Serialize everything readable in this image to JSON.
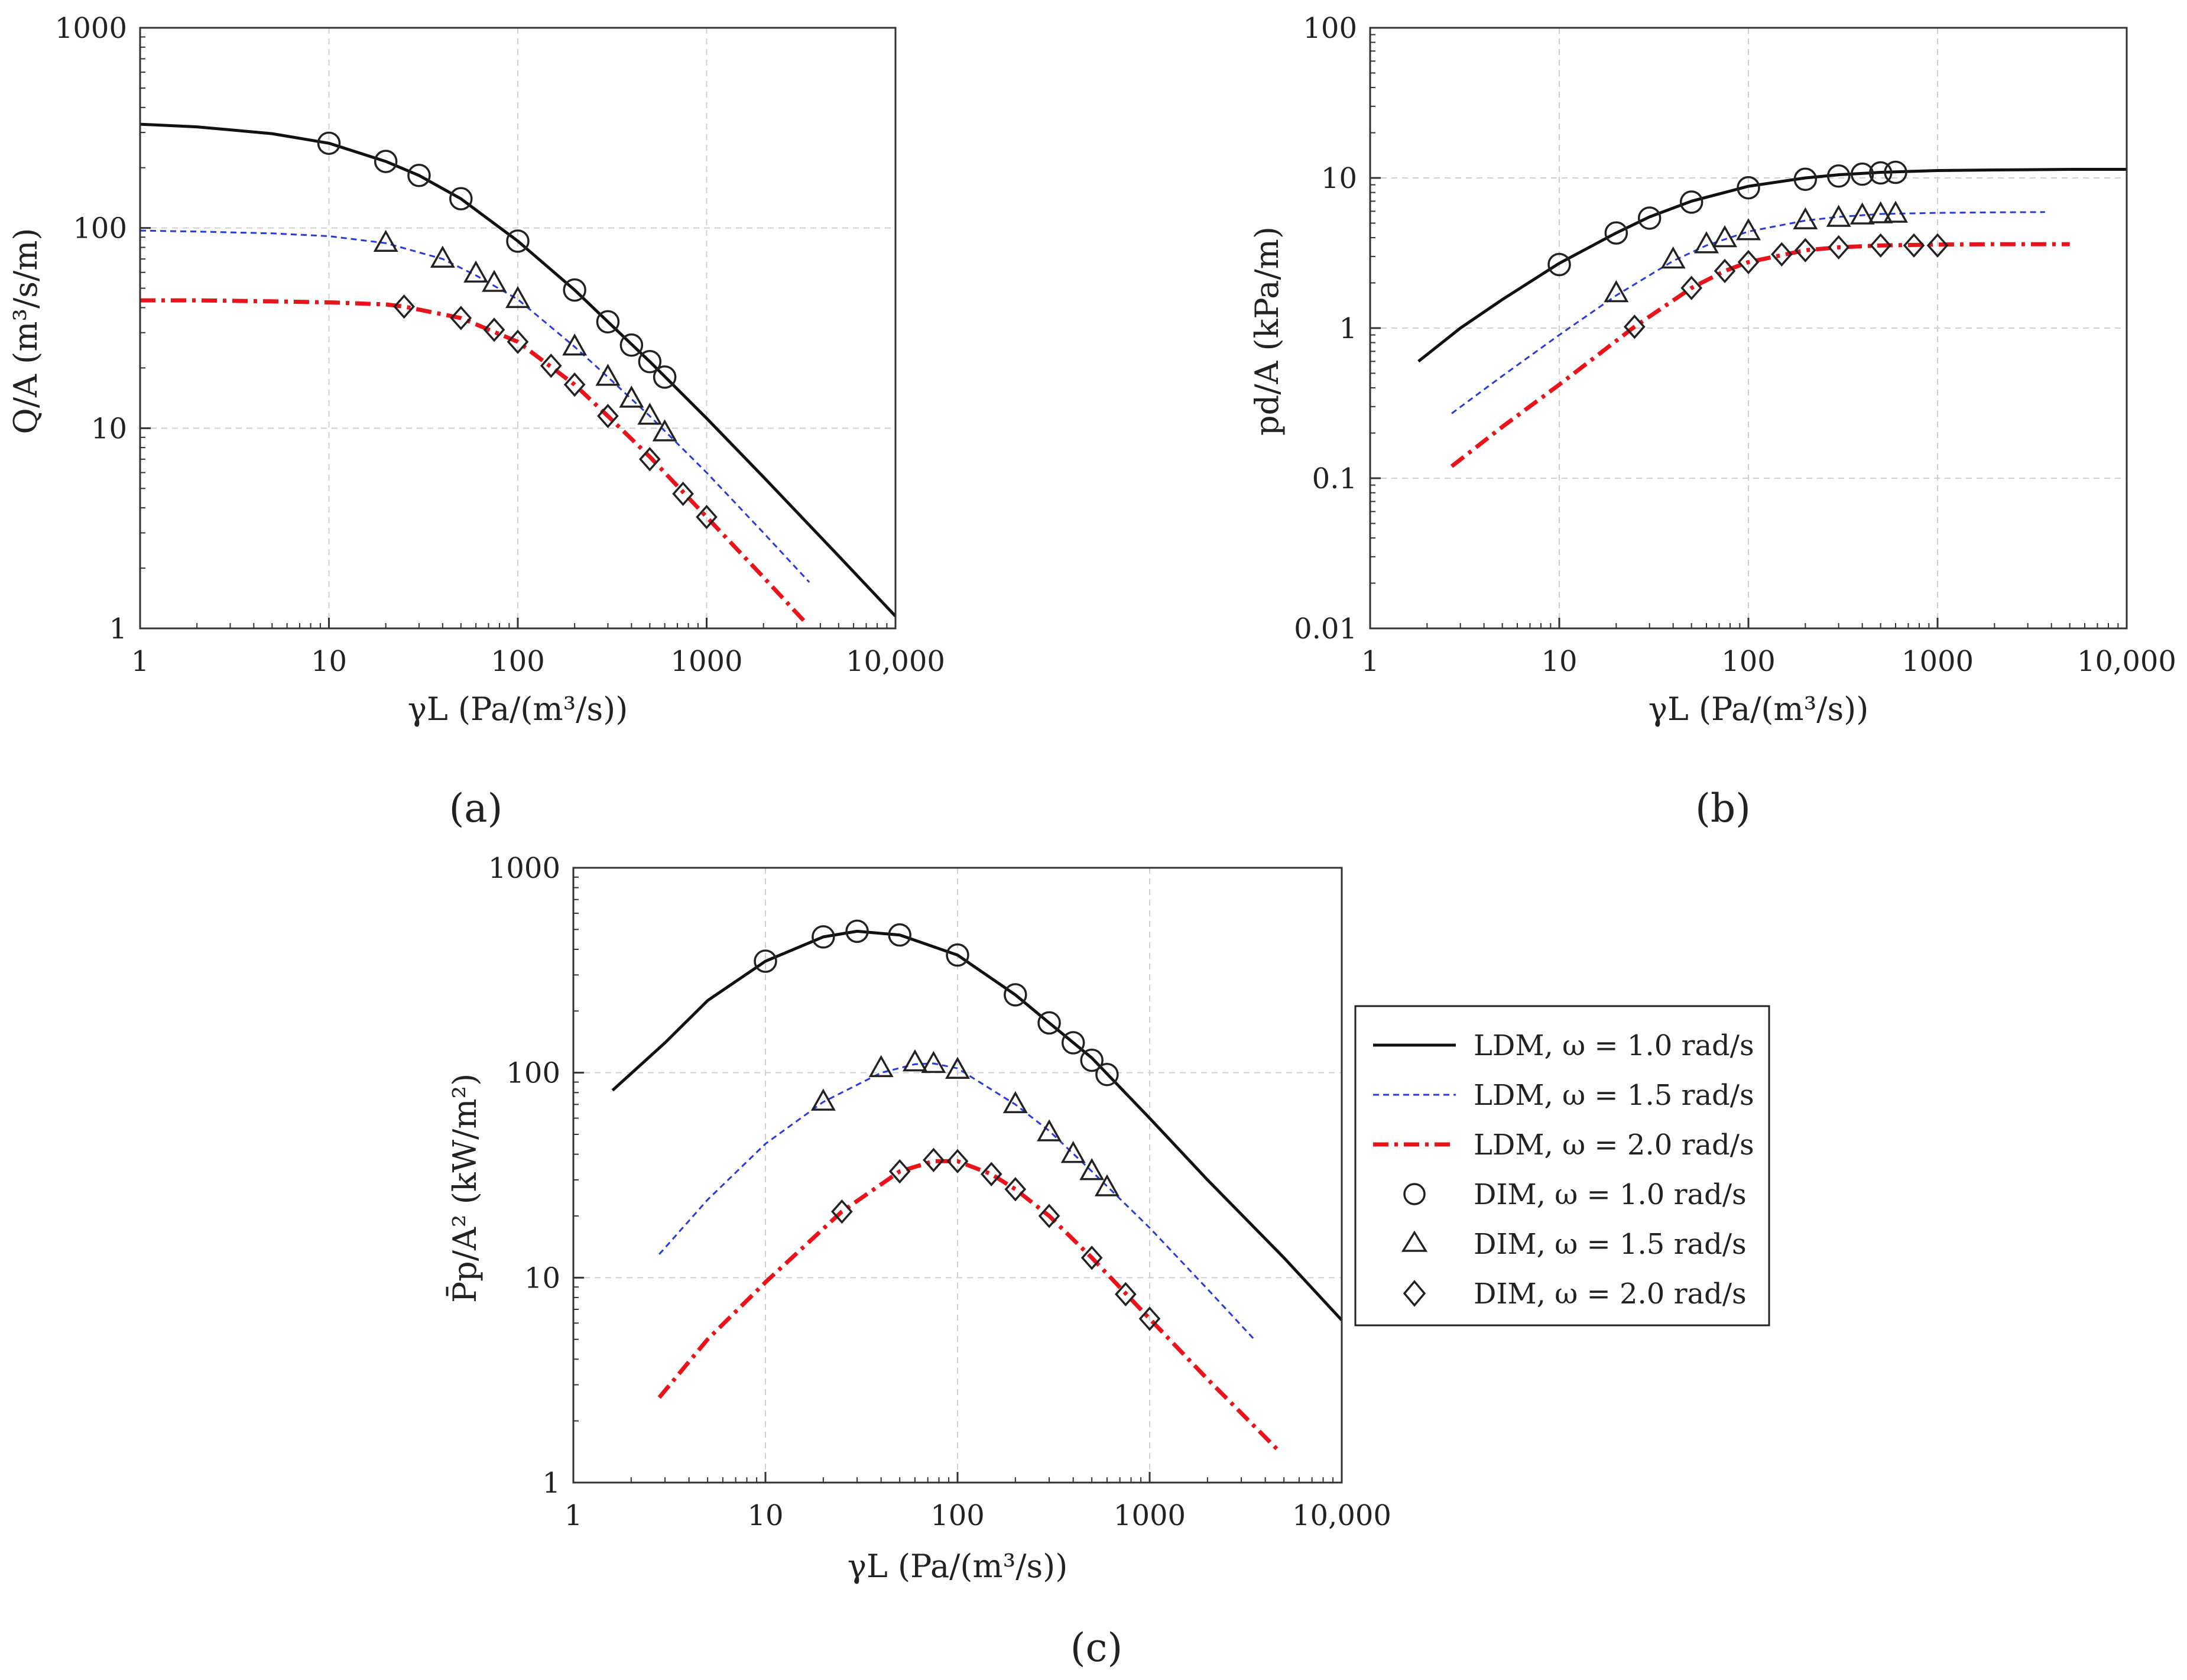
{
  "chart_data": [
    {
      "type": "line",
      "panel": "a",
      "title": "",
      "xlabel": "γL (Pa/(m³/s))",
      "ylabel": "Q/A (m³/s/m)",
      "xscale": "log",
      "yscale": "log",
      "xlim": [
        1,
        10000
      ],
      "ylim": [
        1,
        1000
      ],
      "xticks": [
        1,
        10,
        100,
        1000,
        10000
      ],
      "xtick_labels": [
        "1",
        "10",
        "100",
        "1000",
        "10,000"
      ],
      "yticks": [
        1,
        10,
        100,
        1000
      ],
      "ytick_labels": [
        "1",
        "10",
        "100",
        "1000"
      ],
      "grid": true,
      "series": [
        {
          "name": "LDM, ω = 1.0 rad/s",
          "kind": "line",
          "x": [
            1,
            2,
            5,
            10,
            20,
            30,
            50,
            100,
            200,
            300,
            500,
            1000,
            2000,
            5000,
            10000
          ],
          "y": [
            330,
            320,
            296,
            265,
            215,
            183,
            140,
            86,
            49,
            34,
            21.5,
            11.2,
            5.7,
            2.3,
            1.15
          ]
        },
        {
          "name": "LDM, ω = 1.5 rad/s",
          "kind": "line",
          "x": [
            1,
            2,
            5,
            10,
            20,
            40,
            60,
            100,
            200,
            300,
            500,
            1000,
            2000,
            3500
          ],
          "y": [
            97,
            96,
            94,
            91,
            84,
            70,
            58,
            44,
            25.5,
            18,
            11.5,
            6.0,
            3.0,
            1.7
          ]
        },
        {
          "name": "LDM, ω = 2.0 rad/s",
          "kind": "line",
          "x": [
            1,
            2,
            5,
            10,
            20,
            25,
            50,
            100,
            200,
            300,
            500,
            1000,
            2000,
            3400
          ],
          "y": [
            43.5,
            43.5,
            43,
            42.5,
            41.5,
            40.5,
            35.5,
            27,
            16.5,
            11.5,
            7.2,
            3.6,
            1.8,
            1.05
          ]
        },
        {
          "name": "DIM, ω = 1.0 rad/s",
          "kind": "marker",
          "marker": "circle",
          "x": [
            10,
            20,
            30,
            50,
            100,
            200,
            300,
            400,
            500,
            600
          ],
          "y": [
            265,
            215,
            183,
            140,
            86,
            49,
            34,
            26,
            21.5,
            18
          ]
        },
        {
          "name": "DIM, ω = 1.5 rad/s",
          "kind": "marker",
          "marker": "triangle",
          "x": [
            20,
            40,
            60,
            75,
            100,
            200,
            300,
            400,
            500,
            600
          ],
          "y": [
            84,
            70,
            59,
            53,
            44,
            25.5,
            18,
            14,
            11.5,
            9.5
          ]
        },
        {
          "name": "DIM, ω = 2.0 rad/s",
          "kind": "marker",
          "marker": "diamond",
          "x": [
            25,
            50,
            75,
            100,
            150,
            200,
            300,
            500,
            750,
            1000
          ],
          "y": [
            40.5,
            35.5,
            31,
            27,
            20.5,
            16.5,
            11.5,
            7,
            4.7,
            3.6
          ]
        }
      ]
    },
    {
      "type": "line",
      "panel": "b",
      "title": "",
      "xlabel": "γL (Pa/(m³/s))",
      "ylabel": "pd/A (kPa/m)",
      "xscale": "log",
      "yscale": "log",
      "xlim": [
        1,
        10000
      ],
      "ylim": [
        0.01,
        100
      ],
      "xticks": [
        1,
        10,
        100,
        1000,
        10000
      ],
      "xtick_labels": [
        "1",
        "10",
        "100",
        "1000",
        "10,000"
      ],
      "yticks": [
        0.01,
        0.1,
        1,
        10,
        100
      ],
      "ytick_labels": [
        "0.01",
        "0.1",
        "1",
        "10",
        "100"
      ],
      "grid": true,
      "series": [
        {
          "name": "LDM, ω = 1.0 rad/s",
          "kind": "line",
          "x": [
            1.8,
            3,
            5,
            10,
            20,
            30,
            50,
            100,
            200,
            300,
            500,
            1000,
            2000,
            5000,
            10000
          ],
          "y": [
            0.6,
            1.0,
            1.55,
            2.7,
            4.3,
            5.5,
            7.0,
            8.8,
            10.0,
            10.5,
            10.9,
            11.2,
            11.3,
            11.4,
            11.4
          ]
        },
        {
          "name": "LDM, ω = 1.5 rad/s",
          "kind": "line",
          "x": [
            2.7,
            5,
            10,
            20,
            40,
            60,
            100,
            200,
            300,
            500,
            1000,
            2000,
            3700
          ],
          "y": [
            0.27,
            0.48,
            0.9,
            1.65,
            2.8,
            3.55,
            4.4,
            5.2,
            5.5,
            5.75,
            5.85,
            5.9,
            5.92
          ]
        },
        {
          "name": "LDM, ω = 2.0 rad/s",
          "kind": "line",
          "x": [
            2.7,
            5,
            10,
            25,
            50,
            75,
            100,
            200,
            300,
            500,
            1000,
            2000,
            5000
          ],
          "y": [
            0.12,
            0.22,
            0.42,
            1.02,
            1.85,
            2.4,
            2.75,
            3.3,
            3.45,
            3.55,
            3.6,
            3.62,
            3.62
          ]
        },
        {
          "name": "DIM, ω = 1.0 rad/s",
          "kind": "marker",
          "marker": "circle",
          "x": [
            10,
            20,
            30,
            50,
            100,
            200,
            300,
            400,
            500,
            600
          ],
          "y": [
            2.65,
            4.3,
            5.4,
            6.9,
            8.6,
            9.8,
            10.3,
            10.6,
            10.8,
            10.9
          ]
        },
        {
          "name": "DIM, ω = 1.5 rad/s",
          "kind": "marker",
          "marker": "triangle",
          "x": [
            20,
            40,
            60,
            75,
            100,
            200,
            300,
            400,
            500,
            600
          ],
          "y": [
            1.7,
            2.85,
            3.6,
            3.95,
            4.4,
            5.2,
            5.4,
            5.6,
            5.7,
            5.75
          ]
        },
        {
          "name": "DIM, ω = 2.0 rad/s",
          "kind": "marker",
          "marker": "diamond",
          "x": [
            25,
            50,
            75,
            100,
            150,
            200,
            300,
            500,
            750,
            1000
          ],
          "y": [
            1.02,
            1.85,
            2.4,
            2.75,
            3.1,
            3.3,
            3.45,
            3.55,
            3.55,
            3.55
          ]
        }
      ]
    },
    {
      "type": "line",
      "panel": "c",
      "title": "",
      "xlabel": "γL (Pa/(m³/s))",
      "ylabel": "P̄p/A² (kW/m²)",
      "xscale": "log",
      "yscale": "log",
      "xlim": [
        1,
        10000
      ],
      "ylim": [
        1,
        1000
      ],
      "xticks": [
        1,
        10,
        100,
        1000,
        10000
      ],
      "xtick_labels": [
        "1",
        "10",
        "100",
        "1000",
        "10,000"
      ],
      "yticks": [
        1,
        10,
        100,
        1000
      ],
      "ytick_labels": [
        "1",
        "10",
        "100",
        "1000"
      ],
      "grid": true,
      "legend": "outside-right",
      "series": [
        {
          "name": "LDM, ω = 1.0 rad/s",
          "kind": "line",
          "x": [
            1.6,
            3,
            5,
            10,
            20,
            30,
            50,
            100,
            200,
            300,
            500,
            1000,
            2000,
            5000,
            10000
          ],
          "y": [
            82,
            140,
            225,
            350,
            460,
            490,
            470,
            375,
            240,
            175,
            118,
            60,
            30,
            12.5,
            6.2
          ]
        },
        {
          "name": "LDM, ω = 1.5 rad/s",
          "kind": "line",
          "x": [
            2.8,
            5,
            10,
            20,
            40,
            60,
            75,
            100,
            200,
            300,
            500,
            1000,
            2000,
            3500
          ],
          "y": [
            13,
            24,
            45,
            72,
            100,
            110,
            111,
            105,
            70,
            52,
            33,
            17.5,
            8.8,
            5.0
          ]
        },
        {
          "name": "LDM, ω = 2.0 rad/s",
          "kind": "line",
          "x": [
            2.8,
            5,
            10,
            25,
            50,
            75,
            100,
            150,
            200,
            300,
            500,
            1000,
            2000,
            4800
          ],
          "y": [
            2.6,
            5.0,
            9.5,
            21,
            33,
            37,
            37,
            32,
            27,
            20,
            12.5,
            6.3,
            3.2,
            1.4
          ]
        },
        {
          "name": "DIM, ω = 1.0 rad/s",
          "kind": "marker",
          "marker": "circle",
          "x": [
            10,
            20,
            30,
            50,
            100,
            200,
            300,
            400,
            500,
            600
          ],
          "y": [
            350,
            460,
            490,
            470,
            375,
            240,
            175,
            140,
            115,
            98
          ]
        },
        {
          "name": "DIM, ω = 1.5 rad/s",
          "kind": "marker",
          "marker": "triangle",
          "x": [
            20,
            40,
            60,
            75,
            100,
            200,
            300,
            400,
            500,
            600
          ],
          "y": [
            72,
            105,
            112,
            110,
            103,
            70,
            51,
            40,
            33,
            27.5
          ]
        },
        {
          "name": "DIM, ω = 2.0 rad/s",
          "kind": "marker",
          "marker": "diamond",
          "x": [
            25,
            50,
            75,
            100,
            150,
            200,
            300,
            500,
            750,
            1000
          ],
          "y": [
            21,
            33,
            37.5,
            37,
            32,
            27,
            20,
            12.5,
            8.3,
            6.3
          ]
        }
      ]
    }
  ],
  "panel_labels": [
    "(a)",
    "(b)",
    "(c)"
  ],
  "legend_entries": [
    "LDM, ω = 1.0 rad/s",
    "LDM, ω = 1.5 rad/s",
    "LDM, ω = 2.0 rad/s",
    "DIM, ω = 1.0 rad/s",
    "DIM, ω = 1.5 rad/s",
    "DIM, ω = 2.0 rad/s"
  ],
  "colors": {
    "ldm_1_0": "#111111",
    "ldm_1_5": "#2a3ad8",
    "ldm_2_0": "#e8131b",
    "markers": "#222222",
    "grid": "#cfcfcf"
  }
}
